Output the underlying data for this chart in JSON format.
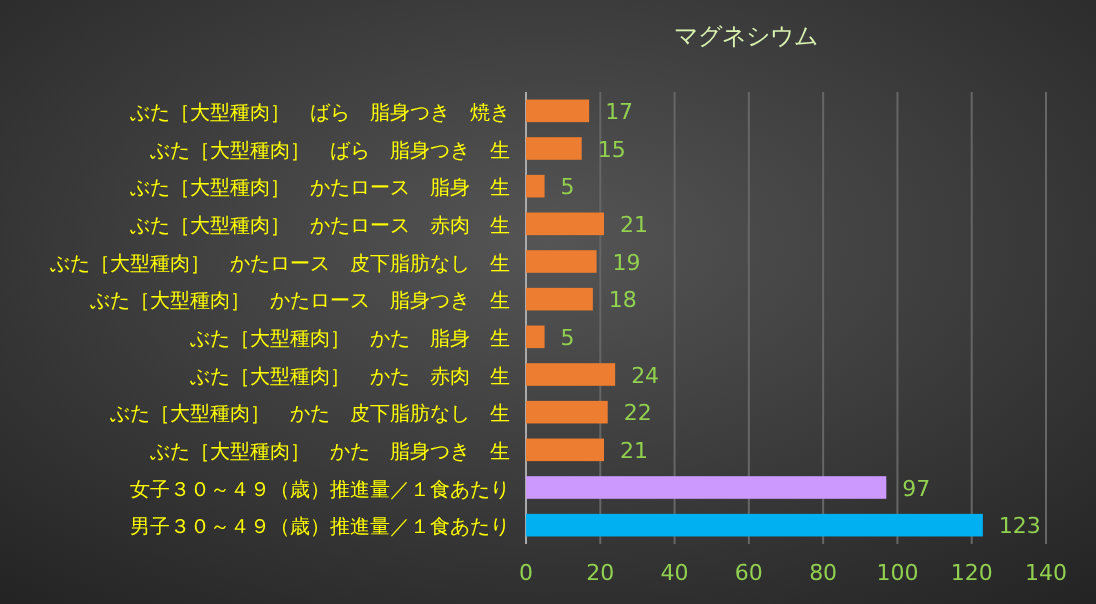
{
  "chart_data": {
    "type": "bar",
    "orientation": "horizontal",
    "title": "マグネシウム",
    "categories": [
      "ぶた［大型種肉］　ばら　脂身つき　焼き",
      "ぶた［大型種肉］　ばら　脂身つき　生",
      "ぶた［大型種肉］　かたロース　脂身　生",
      "ぶた［大型種肉］　かたロース　赤肉　生",
      "ぶた［大型種肉］　かたロース　皮下脂肪なし　生",
      "ぶた［大型種肉］　かたロース　脂身つき　生",
      "ぶた［大型種肉］　かた　脂身　生",
      "ぶた［大型種肉］　かた　赤肉　生",
      "ぶた［大型種肉］　かた　皮下脂肪なし　生",
      "ぶた［大型種肉］　かた　脂身つき　生",
      "女子３０～４９（歳）推進量／１食あたり",
      "男子３０～４９（歳）推進量／１食あたり"
    ],
    "values": [
      17,
      15,
      5,
      21,
      19,
      18,
      5,
      24,
      22,
      21,
      97,
      123
    ],
    "colors": [
      "#ed7d31",
      "#ed7d31",
      "#ed7d31",
      "#ed7d31",
      "#ed7d31",
      "#ed7d31",
      "#ed7d31",
      "#ed7d31",
      "#ed7d31",
      "#ed7d31",
      "#cc99ff",
      "#00b0f0"
    ],
    "xlim": [
      0,
      140
    ],
    "xticks": [
      0,
      20,
      40,
      60,
      80,
      100,
      120,
      140
    ],
    "grid": "x",
    "data_labels": true
  }
}
